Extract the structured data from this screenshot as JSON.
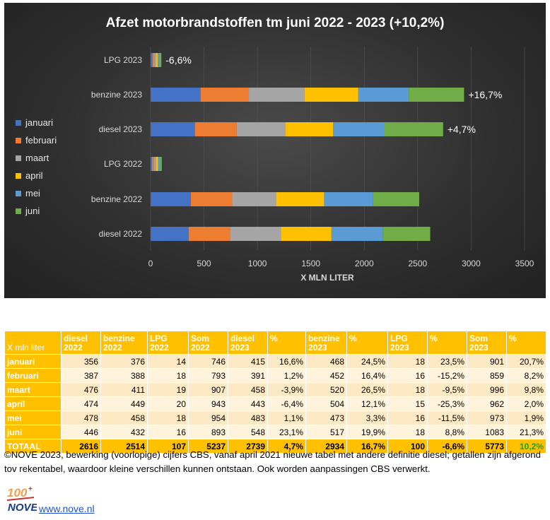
{
  "chart_data": {
    "type": "bar",
    "orientation": "horizontal",
    "stacked": true,
    "title": "Afzet motorbrandstoffen tm juni 2022 - 2023 (+10,2%)",
    "xlabel": "X MLN LITER",
    "xlim": [
      0,
      3500
    ],
    "xticks": [
      0,
      500,
      1000,
      1500,
      2000,
      2500,
      3000,
      3500
    ],
    "categories": [
      "LPG 2023",
      "benzine 2023",
      "diesel 2023",
      "LPG 2022",
      "benzine 2022",
      "diesel 2022"
    ],
    "series": [
      {
        "name": "januari",
        "color": "#4472c4",
        "values": [
          18,
          468,
          415,
          14,
          376,
          356
        ]
      },
      {
        "name": "februari",
        "color": "#ed7d31",
        "values": [
          16,
          452,
          391,
          18,
          388,
          387
        ]
      },
      {
        "name": "maart",
        "color": "#a5a5a5",
        "values": [
          18,
          520,
          458,
          19,
          411,
          476
        ]
      },
      {
        "name": "april",
        "color": "#ffc000",
        "values": [
          15,
          504,
          443,
          20,
          449,
          474
        ]
      },
      {
        "name": "mei",
        "color": "#5b9bd5",
        "values": [
          16,
          473,
          483,
          18,
          458,
          478
        ]
      },
      {
        "name": "juni",
        "color": "#70ad47",
        "values": [
          18,
          517,
          548,
          16,
          432,
          446
        ]
      }
    ],
    "annotations": [
      "-6,6%",
      "+16,7%",
      "+4,7%",
      "",
      "",
      ""
    ]
  },
  "table": {
    "corner_label": "X mln liter",
    "headers": [
      [
        "diesel",
        "2022"
      ],
      [
        "benzine",
        "2022"
      ],
      [
        "LPG",
        "2022"
      ],
      [
        "Som",
        "2022"
      ],
      [
        "diesel",
        "2023"
      ],
      [
        "%",
        ""
      ],
      [
        "benzine",
        "2023"
      ],
      [
        "%",
        ""
      ],
      [
        "LPG",
        "2023"
      ],
      [
        "%",
        ""
      ],
      [
        "Som",
        "2023"
      ],
      [
        "%",
        ""
      ]
    ],
    "rows": [
      {
        "label": "januari",
        "cells": [
          "356",
          "376",
          "14",
          "746",
          "415",
          "16,6%",
          "468",
          "24,5%",
          "18",
          "23,5%",
          "901",
          "20,7%"
        ]
      },
      {
        "label": "februari",
        "cells": [
          "387",
          "388",
          "18",
          "793",
          "391",
          "1,2%",
          "452",
          "16,4%",
          "16",
          "-15,2%",
          "859",
          "8,2%"
        ]
      },
      {
        "label": "maart",
        "cells": [
          "476",
          "411",
          "19",
          "907",
          "458",
          "-3,9%",
          "520",
          "26,5%",
          "18",
          "-9,5%",
          "996",
          "9,8%"
        ]
      },
      {
        "label": "april",
        "cells": [
          "474",
          "449",
          "20",
          "943",
          "443",
          "-6,4%",
          "504",
          "12,1%",
          "15",
          "-25,3%",
          "962",
          "2,0%"
        ]
      },
      {
        "label": "mei",
        "cells": [
          "478",
          "458",
          "18",
          "954",
          "483",
          "1,1%",
          "473",
          "3,3%",
          "16",
          "-11,5%",
          "973",
          "1,9%"
        ]
      },
      {
        "label": "juni",
        "cells": [
          "446",
          "432",
          "16",
          "893",
          "548",
          "23,1%",
          "517",
          "19,9%",
          "18",
          "8,8%",
          "1083",
          "21,3%"
        ]
      }
    ],
    "total": {
      "label": "TOTAAL",
      "cells": [
        "2616",
        "2514",
        "107",
        "5237",
        "2739",
        "4,7%",
        "2934",
        "16,7%",
        "100",
        "-6,6%",
        "5773",
        "10,2%"
      ]
    }
  },
  "footnote": "©NOVE 2023, bewerking (voorlopige) cijfers CBS, vanaf april 2021 nieuwe tabel met andere definitie diesel; getallen zijn afgerond tov rekentabel, waardoor kleine verschillen kunnen ontstaan. Ook worden aanpassingen CBS verwerkt.",
  "logo": {
    "text_top": "100",
    "text_bottom": "NOVE"
  },
  "site_link": "www.nove.nl"
}
